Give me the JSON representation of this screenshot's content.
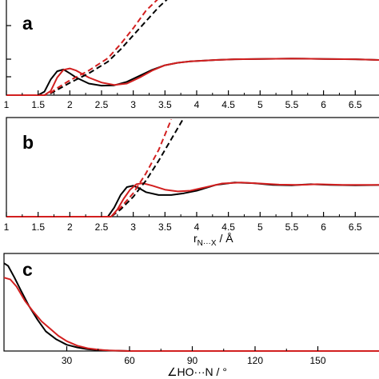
{
  "colors": {
    "black": "#000000",
    "red": "#d21f1f"
  },
  "chart_data": [
    {
      "type": "line",
      "panel_label": "a",
      "xlim": [
        1,
        6.9
      ],
      "ylim": [
        0,
        2.75
      ],
      "xticks": [
        "1",
        "1.5",
        "2",
        "2.5",
        "3",
        "3.5",
        "4",
        "4.5",
        "5",
        "5.5",
        "6",
        "6.5"
      ],
      "xlabel_main": "",
      "xlabel_sub": "",
      "xlabel_tail": "",
      "series": [
        {
          "color": "black",
          "dash": false,
          "x": [
            1.0,
            1.5,
            1.6,
            1.7,
            1.8,
            1.9,
            2.0,
            2.1,
            2.3,
            2.5,
            2.7,
            2.9,
            3.1,
            3.3,
            3.5,
            3.7,
            3.9,
            4.1,
            4.3,
            4.6,
            5.0,
            5.5,
            6.0,
            6.5,
            6.9
          ],
          "y": [
            0.0,
            0.0,
            0.1,
            0.45,
            0.68,
            0.73,
            0.62,
            0.5,
            0.33,
            0.27,
            0.28,
            0.38,
            0.55,
            0.72,
            0.85,
            0.92,
            0.96,
            0.98,
            1.0,
            1.02,
            1.03,
            1.04,
            1.03,
            1.02,
            1.0
          ]
        },
        {
          "color": "red",
          "dash": false,
          "x": [
            1.0,
            1.6,
            1.7,
            1.8,
            1.9,
            2.0,
            2.1,
            2.3,
            2.5,
            2.7,
            2.9,
            3.1,
            3.3,
            3.5,
            3.7,
            3.9,
            4.1,
            4.3,
            4.6,
            5.0,
            5.5,
            6.0,
            6.5,
            6.9
          ],
          "y": [
            0.0,
            0.0,
            0.12,
            0.5,
            0.72,
            0.76,
            0.7,
            0.5,
            0.36,
            0.29,
            0.33,
            0.5,
            0.7,
            0.85,
            0.92,
            0.96,
            0.98,
            1.0,
            1.02,
            1.03,
            1.04,
            1.03,
            1.02,
            1.0
          ]
        },
        {
          "color": "black",
          "dash": true,
          "x": [
            1.0,
            1.6,
            1.7,
            1.8,
            2.0,
            2.3,
            2.6,
            2.8,
            3.0,
            3.2,
            3.4,
            3.55
          ],
          "y": [
            0.0,
            0.0,
            0.05,
            0.15,
            0.35,
            0.62,
            0.95,
            1.3,
            1.7,
            2.1,
            2.5,
            2.75
          ]
        },
        {
          "color": "red",
          "dash": true,
          "x": [
            1.0,
            1.6,
            1.7,
            1.8,
            2.0,
            2.3,
            2.6,
            2.8,
            3.0,
            3.2,
            3.4
          ],
          "y": [
            0.0,
            0.0,
            0.07,
            0.2,
            0.42,
            0.7,
            1.05,
            1.45,
            1.9,
            2.4,
            2.75
          ]
        }
      ]
    },
    {
      "type": "line",
      "panel_label": "b",
      "xlim": [
        1,
        6.9
      ],
      "ylim": [
        0,
        2.75
      ],
      "xticks": [
        "1",
        "1.5",
        "2",
        "2.5",
        "3",
        "3.5",
        "4",
        "4.5",
        "5",
        "5.5",
        "6",
        "6.5"
      ],
      "xlabel_main": "r",
      "xlabel_sub": "N···X",
      "xlabel_tail": " / Å",
      "series": [
        {
          "color": "black",
          "dash": false,
          "x": [
            1.0,
            2.6,
            2.7,
            2.8,
            2.9,
            3.0,
            3.1,
            3.2,
            3.4,
            3.6,
            3.8,
            4.0,
            4.3,
            4.6,
            4.9,
            5.2,
            5.5,
            5.8,
            6.1,
            6.5,
            6.9
          ],
          "y": [
            0.0,
            0.0,
            0.25,
            0.6,
            0.82,
            0.86,
            0.78,
            0.68,
            0.6,
            0.6,
            0.65,
            0.72,
            0.88,
            0.95,
            0.93,
            0.88,
            0.87,
            0.9,
            0.88,
            0.87,
            0.88
          ]
        },
        {
          "color": "red",
          "dash": false,
          "x": [
            1.0,
            2.65,
            2.75,
            2.85,
            2.95,
            3.05,
            3.15,
            3.3,
            3.5,
            3.7,
            3.9,
            4.1,
            4.4,
            4.7,
            5.0,
            5.3,
            5.6,
            5.9,
            6.3,
            6.9
          ],
          "y": [
            0.0,
            0.0,
            0.2,
            0.5,
            0.75,
            0.9,
            0.93,
            0.86,
            0.75,
            0.7,
            0.72,
            0.8,
            0.92,
            0.95,
            0.92,
            0.89,
            0.88,
            0.9,
            0.88,
            0.88
          ]
        },
        {
          "color": "black",
          "dash": true,
          "x": [
            1.0,
            2.65,
            2.8,
            3.0,
            3.2,
            3.4,
            3.6,
            3.8
          ],
          "y": [
            0.0,
            0.0,
            0.2,
            0.55,
            1.0,
            1.55,
            2.15,
            2.75
          ]
        },
        {
          "color": "red",
          "dash": true,
          "x": [
            1.0,
            2.65,
            2.8,
            3.0,
            3.2,
            3.4,
            3.6
          ],
          "y": [
            0.0,
            0.0,
            0.25,
            0.65,
            1.2,
            1.85,
            2.7
          ]
        }
      ]
    },
    {
      "type": "line",
      "panel_label": "c",
      "xlim": [
        0,
        180
      ],
      "ylim": [
        0,
        1
      ],
      "xticks": [
        "30",
        "60",
        "90",
        "120",
        "150"
      ],
      "xlabel_main": "∠HO···N / °",
      "xlabel_sub": "",
      "xlabel_tail": "",
      "series": [
        {
          "color": "black",
          "dash": false,
          "x": [
            0,
            2,
            5,
            8,
            12,
            16,
            20,
            25,
            30,
            35,
            40,
            45,
            50,
            60,
            70,
            90,
            120,
            150,
            180
          ],
          "y": [
            0.98,
            0.95,
            0.82,
            0.68,
            0.5,
            0.35,
            0.22,
            0.13,
            0.07,
            0.04,
            0.02,
            0.01,
            0.005,
            0.0,
            0.0,
            0.0,
            0.0,
            0.0,
            0.0
          ]
        },
        {
          "color": "red",
          "dash": false,
          "x": [
            0,
            3,
            6,
            10,
            14,
            18,
            22,
            26,
            30,
            35,
            40,
            45,
            50,
            60,
            70,
            90,
            120,
            150,
            180
          ],
          "y": [
            0.82,
            0.8,
            0.72,
            0.56,
            0.44,
            0.33,
            0.25,
            0.17,
            0.11,
            0.06,
            0.03,
            0.015,
            0.007,
            0.0,
            0.0,
            0.0,
            0.0,
            0.0,
            0.0
          ]
        }
      ]
    }
  ]
}
